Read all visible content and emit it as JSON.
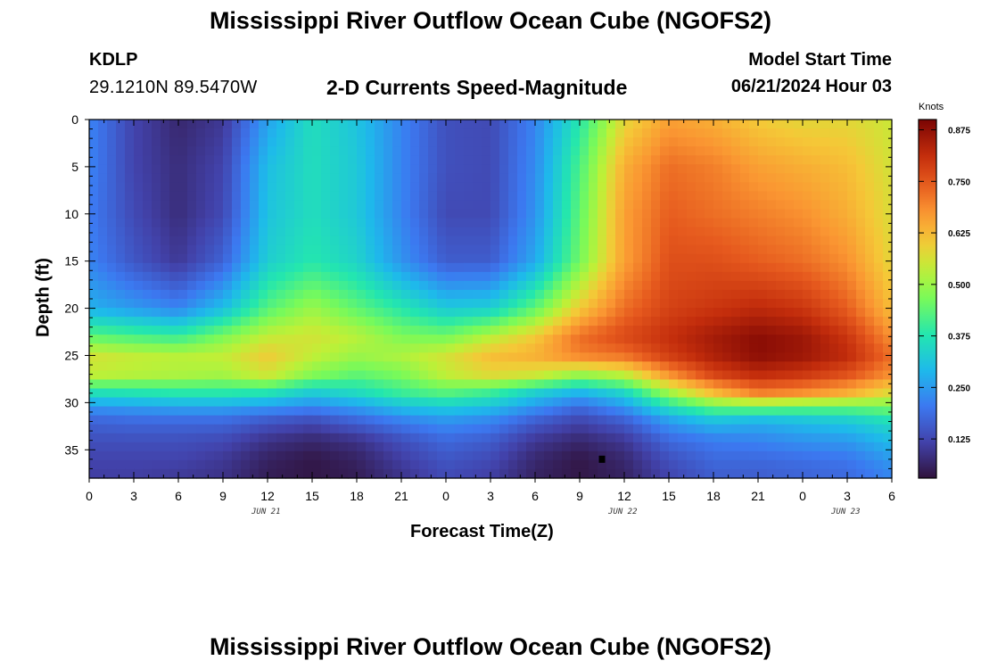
{
  "title": "Mississippi River Outflow Ocean Cube (NGOFS2)",
  "title_repeat": "Mississippi River Outflow Ocean Cube (NGOFS2)",
  "station": {
    "id": "KDLP",
    "coords": "29.1210N  89.5470W"
  },
  "subtitle": "2-D Currents Speed-Magnitude",
  "model": {
    "label": "Model Start Time",
    "value": "06/21/2024 Hour 03"
  },
  "colorbar": {
    "unit_label": "Knots",
    "ticks": [
      "0.125",
      "0.250",
      "0.375",
      "0.500",
      "0.625",
      "0.750",
      "0.875"
    ],
    "min": 0.03,
    "max": 0.9
  },
  "chart_data": {
    "type": "heatmap",
    "title": "2-D Currents Speed-Magnitude",
    "xlabel": "Forecast Time(Z)",
    "ylabel": "Depth (ft)",
    "x_hours_range": [
      0,
      54
    ],
    "x_tick_labels": [
      "0",
      "3",
      "6",
      "9",
      "12",
      "15",
      "18",
      "21",
      "0",
      "3",
      "6",
      "9",
      "12",
      "15",
      "18",
      "21",
      "0",
      "3",
      "6"
    ],
    "date_labels": [
      {
        "label": "JUN 21",
        "hour": 12
      },
      {
        "label": "JUN 22",
        "hour": 36
      },
      {
        "label": "JUN 23",
        "hour": 51
      }
    ],
    "y_ticks": [
      0,
      5,
      10,
      15,
      20,
      25,
      30,
      35
    ],
    "ylim": [
      38,
      0
    ],
    "depth_levels_ft": [
      0,
      5,
      10,
      15,
      20,
      23,
      25,
      27,
      29,
      30.5,
      32,
      34,
      36,
      38
    ],
    "time_hours": [
      0,
      3,
      6,
      9,
      12,
      15,
      18,
      21,
      24,
      27,
      30,
      33,
      36,
      39,
      42,
      45,
      48,
      51,
      54
    ],
    "values_knots": [
      [
        0.22,
        0.12,
        0.07,
        0.1,
        0.26,
        0.36,
        0.31,
        0.22,
        0.14,
        0.13,
        0.22,
        0.38,
        0.58,
        0.66,
        0.64,
        0.6,
        0.58,
        0.58,
        0.55
      ],
      [
        0.22,
        0.12,
        0.08,
        0.12,
        0.3,
        0.36,
        0.32,
        0.22,
        0.14,
        0.13,
        0.23,
        0.42,
        0.64,
        0.72,
        0.7,
        0.66,
        0.64,
        0.62,
        0.56
      ],
      [
        0.21,
        0.13,
        0.08,
        0.13,
        0.31,
        0.36,
        0.32,
        0.22,
        0.13,
        0.13,
        0.24,
        0.44,
        0.66,
        0.74,
        0.72,
        0.7,
        0.68,
        0.64,
        0.57
      ],
      [
        0.22,
        0.15,
        0.1,
        0.17,
        0.33,
        0.38,
        0.34,
        0.24,
        0.16,
        0.16,
        0.27,
        0.46,
        0.66,
        0.76,
        0.76,
        0.74,
        0.72,
        0.68,
        0.58
      ],
      [
        0.28,
        0.25,
        0.22,
        0.3,
        0.43,
        0.5,
        0.44,
        0.38,
        0.32,
        0.33,
        0.44,
        0.6,
        0.72,
        0.78,
        0.8,
        0.82,
        0.8,
        0.74,
        0.62
      ],
      [
        0.44,
        0.42,
        0.4,
        0.47,
        0.54,
        0.56,
        0.53,
        0.47,
        0.46,
        0.53,
        0.6,
        0.72,
        0.77,
        0.81,
        0.85,
        0.88,
        0.86,
        0.8,
        0.68
      ],
      [
        0.56,
        0.54,
        0.53,
        0.54,
        0.6,
        0.54,
        0.5,
        0.52,
        0.56,
        0.62,
        0.64,
        0.7,
        0.72,
        0.79,
        0.84,
        0.88,
        0.86,
        0.82,
        0.72
      ],
      [
        0.54,
        0.53,
        0.52,
        0.51,
        0.56,
        0.48,
        0.44,
        0.47,
        0.54,
        0.58,
        0.56,
        0.5,
        0.54,
        0.68,
        0.78,
        0.82,
        0.8,
        0.76,
        0.68
      ],
      [
        0.36,
        0.37,
        0.38,
        0.38,
        0.37,
        0.32,
        0.35,
        0.4,
        0.43,
        0.4,
        0.33,
        0.28,
        0.34,
        0.5,
        0.62,
        0.7,
        0.68,
        0.64,
        0.57
      ],
      [
        0.24,
        0.25,
        0.26,
        0.26,
        0.24,
        0.22,
        0.25,
        0.3,
        0.32,
        0.3,
        0.24,
        0.18,
        0.24,
        0.36,
        0.44,
        0.45,
        0.44,
        0.44,
        0.46
      ],
      [
        0.17,
        0.18,
        0.18,
        0.18,
        0.15,
        0.13,
        0.17,
        0.21,
        0.24,
        0.22,
        0.16,
        0.12,
        0.16,
        0.25,
        0.3,
        0.28,
        0.3,
        0.32,
        0.36
      ],
      [
        0.14,
        0.14,
        0.14,
        0.13,
        0.09,
        0.07,
        0.09,
        0.14,
        0.18,
        0.16,
        0.1,
        0.07,
        0.1,
        0.18,
        0.21,
        0.22,
        0.24,
        0.25,
        0.3
      ],
      [
        0.12,
        0.12,
        0.12,
        0.1,
        0.06,
        0.04,
        0.06,
        0.11,
        0.15,
        0.13,
        0.07,
        0.04,
        0.07,
        0.14,
        0.18,
        0.18,
        0.19,
        0.2,
        0.25
      ],
      [
        0.11,
        0.11,
        0.1,
        0.09,
        0.05,
        0.04,
        0.05,
        0.09,
        0.13,
        0.11,
        0.06,
        0.04,
        0.06,
        0.12,
        0.16,
        0.16,
        0.17,
        0.18,
        0.22
      ]
    ],
    "marker": {
      "hour": 34.5,
      "depth_ft": 36
    }
  }
}
